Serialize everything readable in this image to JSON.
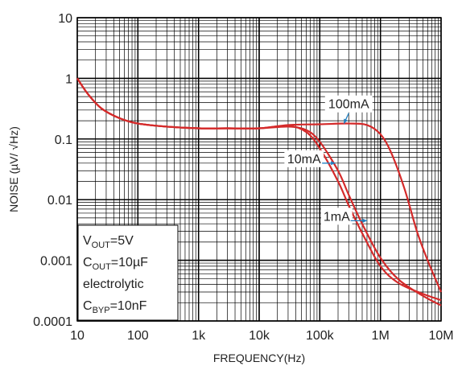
{
  "chart_data": {
    "type": "line",
    "title": "",
    "xlabel": "FREQUENCY(Hz)",
    "ylabel": "NOISE (µV/ √Hz)",
    "x_scale": "log",
    "y_scale": "log",
    "xlim": [
      10,
      10000000
    ],
    "ylim": [
      0.0001,
      10
    ],
    "grid": true,
    "x_ticks": [
      {
        "value": 10,
        "label": "10"
      },
      {
        "value": 100,
        "label": "100"
      },
      {
        "value": 1000,
        "label": "1k"
      },
      {
        "value": 10000,
        "label": "10k"
      },
      {
        "value": 100000,
        "label": "100k"
      },
      {
        "value": 1000000,
        "label": "1M"
      },
      {
        "value": 10000000,
        "label": "10M"
      }
    ],
    "y_ticks": [
      {
        "value": 10,
        "label": "10"
      },
      {
        "value": 1,
        "label": "1"
      },
      {
        "value": 0.1,
        "label": "0.1"
      },
      {
        "value": 0.01,
        "label": "0.01"
      },
      {
        "value": 0.001,
        "label": "0.001"
      },
      {
        "value": 0.0001,
        "label": "0.0001"
      }
    ],
    "line_color": "#d42a2a",
    "annotation_color": "#1f7fc0",
    "series": [
      {
        "name": "100mA",
        "points": [
          [
            10,
            1.0
          ],
          [
            15,
            0.55
          ],
          [
            25,
            0.32
          ],
          [
            50,
            0.22
          ],
          [
            100,
            0.18
          ],
          [
            300,
            0.16
          ],
          [
            1000,
            0.15
          ],
          [
            3000,
            0.15
          ],
          [
            10000,
            0.15
          ],
          [
            30000,
            0.17
          ],
          [
            100000,
            0.175
          ],
          [
            300000,
            0.18
          ],
          [
            600000,
            0.17
          ],
          [
            1000000,
            0.12
          ],
          [
            1500000,
            0.06
          ],
          [
            2500000,
            0.015
          ],
          [
            4000000,
            0.003
          ],
          [
            6000000,
            0.001
          ],
          [
            10000000,
            0.0003
          ]
        ]
      },
      {
        "name": "10mA",
        "points": [
          [
            10,
            1.0
          ],
          [
            15,
            0.55
          ],
          [
            25,
            0.32
          ],
          [
            50,
            0.22
          ],
          [
            100,
            0.18
          ],
          [
            300,
            0.16
          ],
          [
            1000,
            0.15
          ],
          [
            3000,
            0.15
          ],
          [
            10000,
            0.15
          ],
          [
            30000,
            0.165
          ],
          [
            60000,
            0.13
          ],
          [
            100000,
            0.07
          ],
          [
            200000,
            0.02
          ],
          [
            300000,
            0.008
          ],
          [
            500000,
            0.0028
          ],
          [
            1000000,
            0.0008
          ],
          [
            2000000,
            0.00042
          ],
          [
            5000000,
            0.00028
          ],
          [
            10000000,
            0.00022
          ]
        ]
      },
      {
        "name": "1mA",
        "points": [
          [
            10,
            1.0
          ],
          [
            15,
            0.55
          ],
          [
            25,
            0.32
          ],
          [
            50,
            0.22
          ],
          [
            100,
            0.18
          ],
          [
            300,
            0.16
          ],
          [
            1000,
            0.15
          ],
          [
            3000,
            0.15
          ],
          [
            10000,
            0.15
          ],
          [
            30000,
            0.16
          ],
          [
            60000,
            0.14
          ],
          [
            100000,
            0.09
          ],
          [
            200000,
            0.03
          ],
          [
            300000,
            0.012
          ],
          [
            500000,
            0.004
          ],
          [
            1000000,
            0.0011
          ],
          [
            2000000,
            0.00048
          ],
          [
            5000000,
            0.00026
          ],
          [
            10000000,
            0.00018
          ]
        ]
      }
    ],
    "annotations": [
      {
        "text": "100mA",
        "label_x": 300000,
        "label_y": 0.32,
        "arrow_x": 250000,
        "arrow_y": 0.18
      },
      {
        "text": "10mA",
        "label_x": 55000,
        "label_y": 0.04,
        "arrow_x": 180000,
        "arrow_y": 0.04
      },
      {
        "text": "1mA",
        "label_x": 190000,
        "label_y": 0.0045,
        "arrow_x": 600000,
        "arrow_y": 0.0045
      }
    ],
    "conditions": [
      {
        "main": "V",
        "sub": "OUT",
        "rest": "=5V"
      },
      {
        "main": "C",
        "sub": "OUT",
        "rest": "=10µF"
      },
      {
        "main": "electrolytic",
        "sub": "",
        "rest": ""
      },
      {
        "main": "C",
        "sub": "BYP",
        "rest": "=10nF"
      }
    ]
  }
}
